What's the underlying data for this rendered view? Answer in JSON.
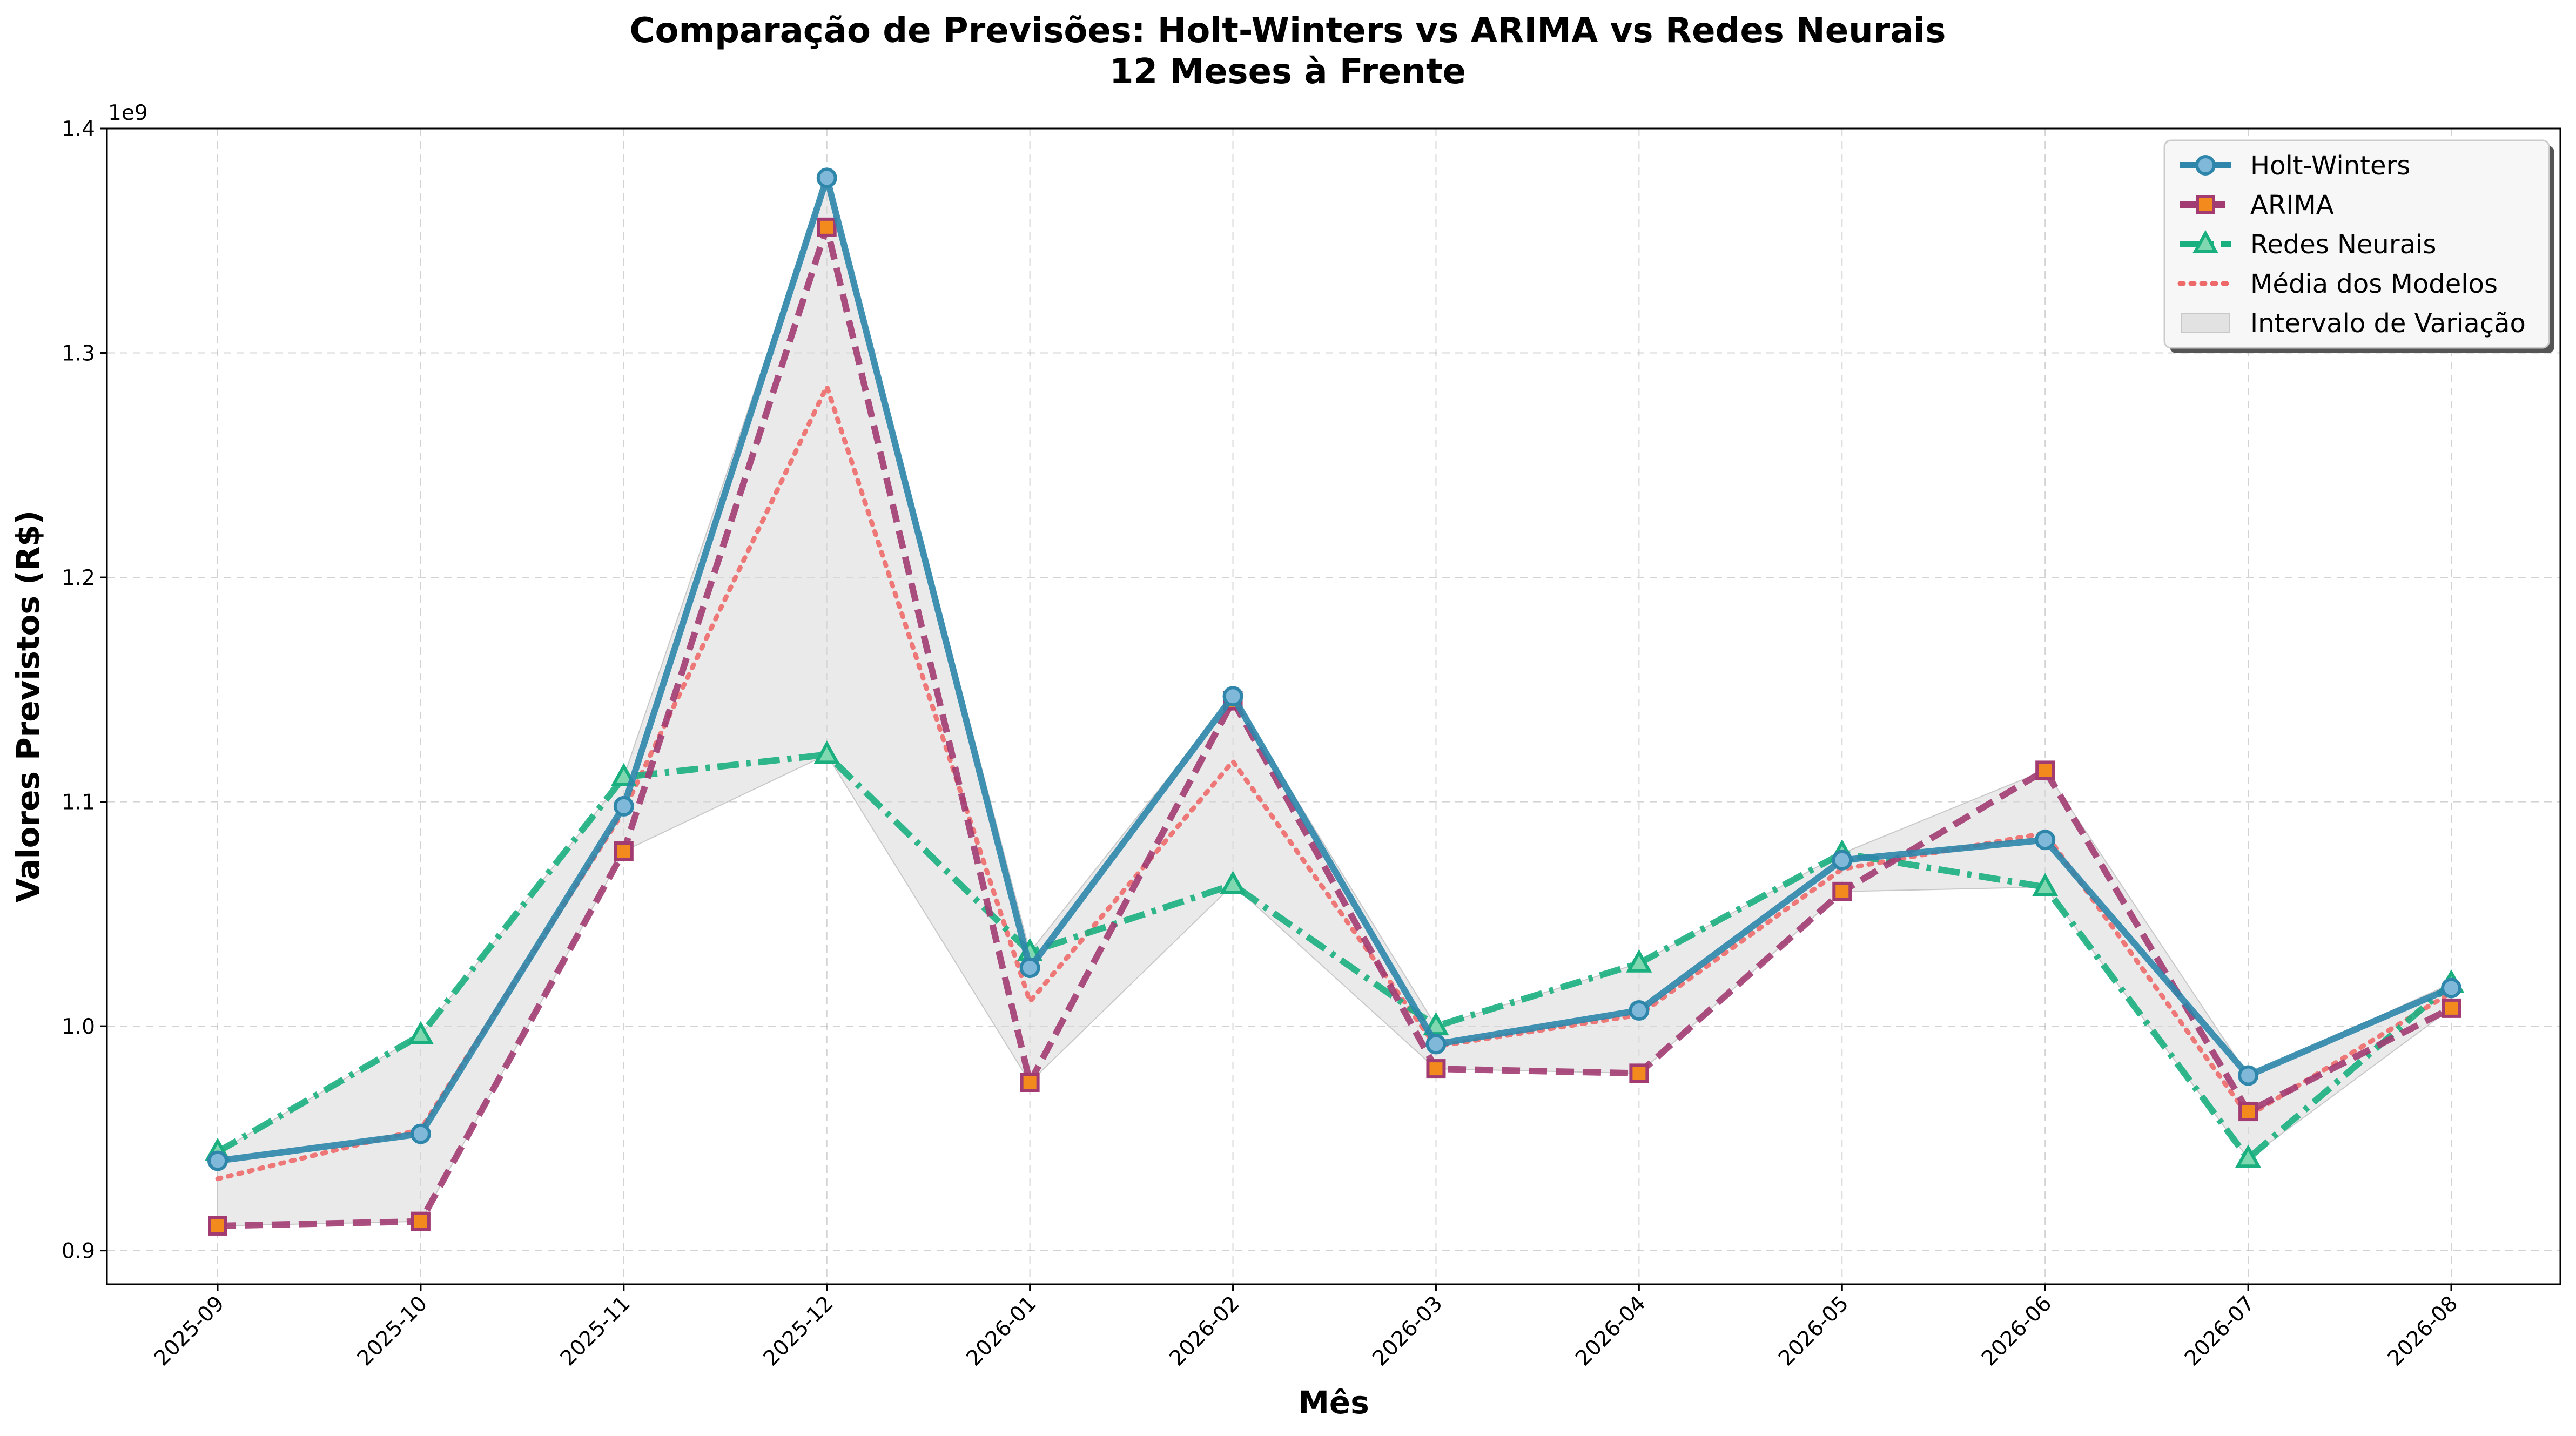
{
  "chart_data": {
    "type": "line",
    "title_line1": "Comparação de Previsões: Holt-Winters vs ARIMA vs Redes Neurais",
    "title_line2": "12 Meses à Frente",
    "xlabel": "Mês",
    "ylabel": "Valores Previstos (R$)",
    "y_offset_label": "1e9",
    "categories": [
      "2025-09",
      "2025-10",
      "2025-11",
      "2025-12",
      "2026-01",
      "2026-02",
      "2026-03",
      "2026-04",
      "2026-05",
      "2026-06",
      "2026-07",
      "2026-08"
    ],
    "ylim": [
      0.885,
      1.4
    ],
    "yticks": [
      0.9,
      1.0,
      1.1,
      1.2,
      1.3,
      1.4
    ],
    "ytick_labels": [
      "0.9",
      "1.0",
      "1.1",
      "1.2",
      "1.3",
      "1.4"
    ],
    "grid": true,
    "legend_position": "top-right",
    "series": [
      {
        "name": "Holt-Winters",
        "color": "#2E86AB",
        "marker": "circle",
        "linestyle": "solid",
        "values": [
          0.94,
          0.952,
          1.098,
          1.378,
          1.026,
          1.147,
          0.992,
          1.007,
          1.074,
          1.083,
          0.978,
          1.017
        ]
      },
      {
        "name": "ARIMA",
        "color": "#A23B72",
        "marker": "square",
        "linestyle": "dashed",
        "values": [
          0.911,
          0.913,
          1.078,
          1.356,
          0.975,
          1.145,
          0.981,
          0.979,
          1.06,
          1.114,
          0.962,
          1.008
        ]
      },
      {
        "name": "Redes Neurais",
        "color": "#1AAF7E",
        "marker": "triangle",
        "linestyle": "dashdot",
        "values": [
          0.944,
          0.996,
          1.111,
          1.121,
          1.033,
          1.063,
          1.0,
          1.028,
          1.077,
          1.062,
          0.941,
          1.019
        ]
      },
      {
        "name": "Média dos Modelos",
        "color": "#EE6A6A",
        "marker": "none",
        "linestyle": "dotted",
        "values": [
          0.932,
          0.954,
          1.096,
          1.285,
          1.011,
          1.118,
          0.991,
          1.005,
          1.07,
          1.086,
          0.96,
          1.015
        ]
      }
    ],
    "band": {
      "name": "Intervalo de Variação",
      "color": "#d9d9d9"
    },
    "marker_fill": "#7fb8d8",
    "square_fill": "#f28a1d"
  }
}
